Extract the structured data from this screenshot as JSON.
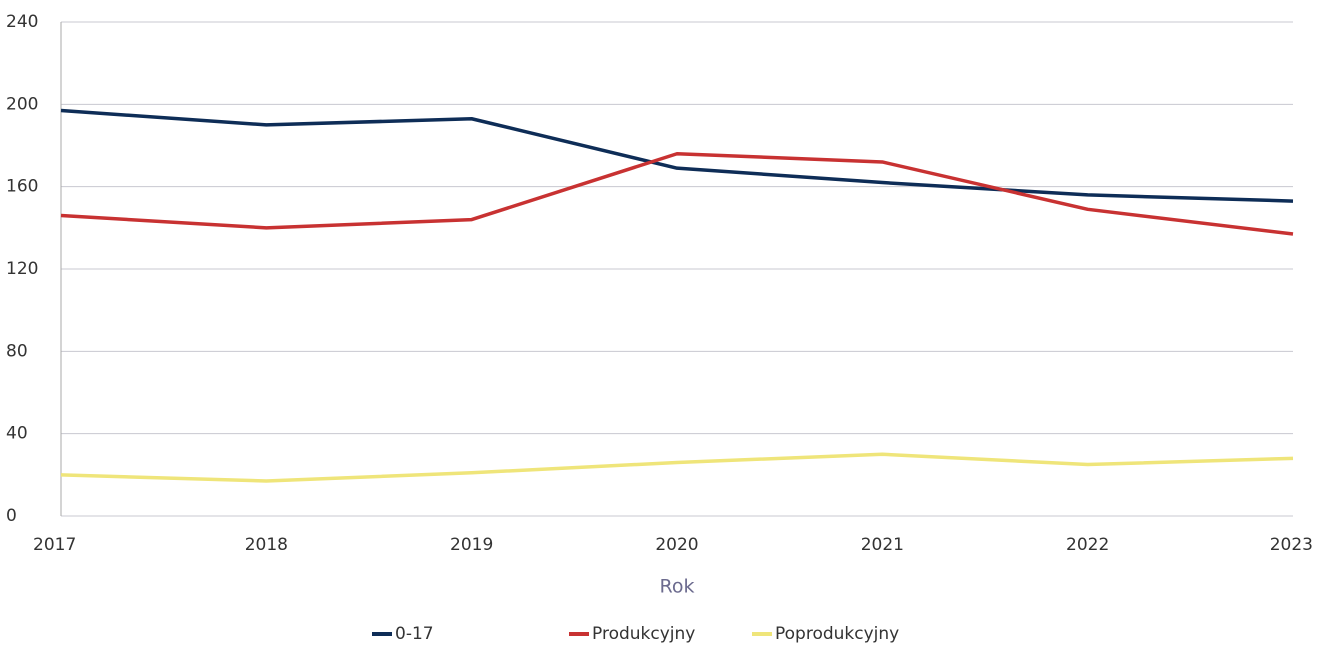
{
  "chart_data": {
    "type": "line",
    "x": [
      2017,
      2018,
      2019,
      2020,
      2021,
      2022,
      2023
    ],
    "x_label": "Rok",
    "xlim": [
      2017,
      2023
    ],
    "xticks": [
      2017,
      2018,
      2019,
      2020,
      2021,
      2022,
      2023
    ],
    "ylim": [
      0,
      240
    ],
    "yticks": [
      0,
      40,
      80,
      120,
      160,
      200,
      240
    ],
    "grid": true,
    "legend": "bottom",
    "series": [
      {
        "name": "0-17",
        "color": "#0e2d57",
        "values": [
          197,
          190,
          193,
          169,
          162,
          156,
          153
        ]
      },
      {
        "name": "Produkcyjny",
        "color": "#c83232",
        "values": [
          146,
          140,
          144,
          176,
          172,
          149,
          137
        ]
      },
      {
        "name": "Poprodukcyjny",
        "color": "#efe57a",
        "values": [
          20,
          17,
          21,
          26,
          30,
          25,
          28
        ]
      }
    ]
  }
}
